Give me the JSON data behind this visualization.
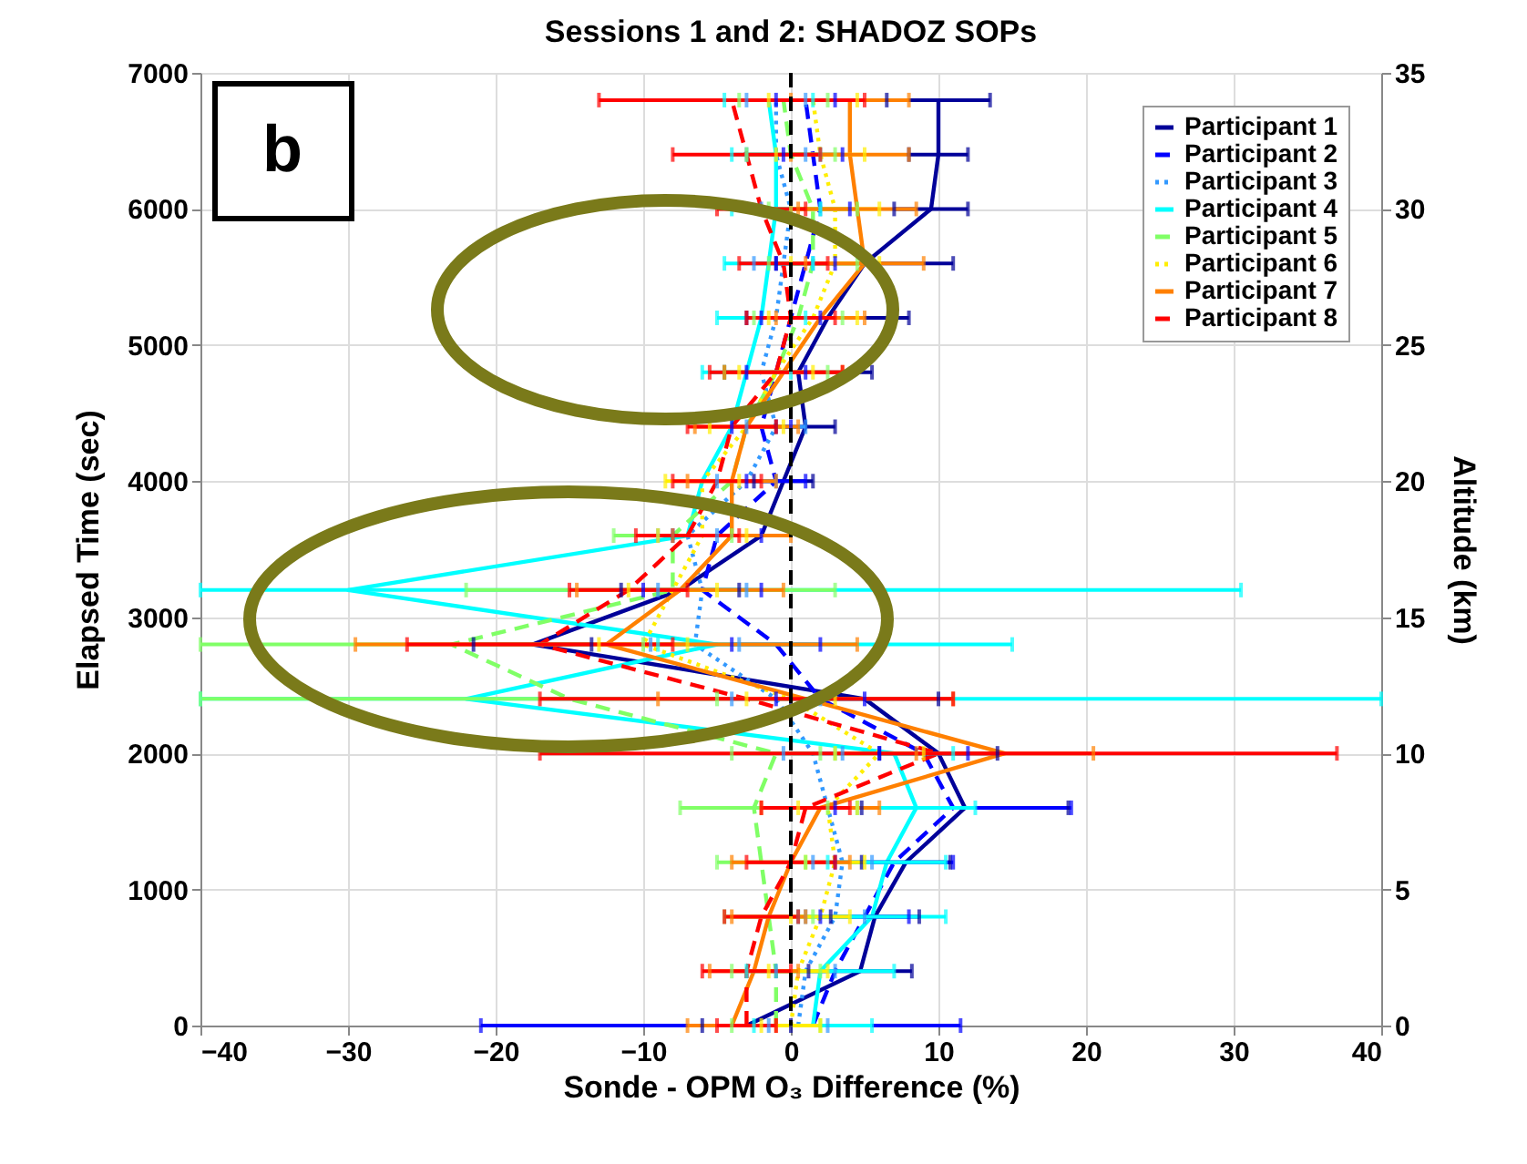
{
  "chart_data": {
    "type": "line",
    "title": "Sessions 1 and 2: SHADOZ SOPs",
    "xlabel": "Sonde - OPM O₃ Difference (%)",
    "ylabel": "Elapsed Time (sec)",
    "y2label": "Altitude (km)",
    "xlim": [
      -40,
      40
    ],
    "xticks": [
      -40,
      -30,
      -20,
      -10,
      0,
      10,
      20,
      30,
      40
    ],
    "ylim": [
      0,
      7000
    ],
    "yticks": [
      0,
      1000,
      2000,
      3000,
      4000,
      5000,
      6000,
      7000
    ],
    "y2lim": [
      0,
      35
    ],
    "y2ticks": [
      0,
      5,
      10,
      15,
      20,
      25,
      30,
      35
    ],
    "grid": true,
    "legend": "top right",
    "annotations": [
      "b"
    ],
    "ref_lines": [
      {
        "axis": "x",
        "value": 0,
        "color": "#000000",
        "line_style": "dashed"
      }
    ],
    "series": [
      {
        "name": "Participant 1",
        "color": "#000099",
        "line_style": "solid",
        "x": [
          -3,
          4.7,
          5.7,
          7.8,
          11.8,
          10,
          5,
          -17.5,
          -7.5,
          -2,
          -0.5,
          1,
          0.5,
          2.5,
          5,
          9.5,
          10,
          10
        ],
        "values": [
          0,
          400,
          800,
          1200,
          1600,
          2000,
          2400,
          2800,
          3200,
          3600,
          4000,
          4400,
          4800,
          5200,
          5600,
          6000,
          6400,
          6800
        ],
        "xerrors": [
          3,
          3.5,
          3,
          3,
          7,
          4,
          5,
          4,
          4,
          null,
          2,
          2,
          5,
          5.5,
          6,
          2.5,
          2,
          3.5
        ]
      },
      {
        "name": "Participant 2",
        "color": "#0000ff",
        "line_style": "dashed",
        "x": [
          1.5,
          3,
          5,
          7,
          11,
          9,
          2,
          -1,
          -6,
          -5,
          -1,
          -2,
          -1,
          0,
          1,
          2,
          1.5,
          1
        ],
        "values": [
          0,
          400,
          800,
          1200,
          1600,
          2000,
          2400,
          2800,
          3200,
          3600,
          4000,
          4400,
          4800,
          5200,
          5600,
          6000,
          6400,
          6800
        ],
        "xerrors": [
          [
            -21,
            11.5
          ],
          null,
          3,
          4,
          8,
          3,
          3,
          3,
          4,
          3,
          2,
          2,
          2,
          2,
          2,
          2,
          2,
          2
        ]
      },
      {
        "name": "Participant 3",
        "color": "#3399ff",
        "line_style": "dotted",
        "x": [
          0.5,
          1,
          3,
          3.5,
          2.5,
          1.5,
          -1,
          -6.5,
          -6,
          -7,
          -3,
          -1,
          -2,
          -1,
          -0.5,
          0,
          -1,
          -1
        ],
        "values": [
          0,
          400,
          800,
          1200,
          1600,
          2000,
          2400,
          2800,
          3200,
          3600,
          4000,
          4400,
          4800,
          5200,
          5600,
          6000,
          6400,
          6800
        ],
        "xerrors": [
          2,
          2,
          2,
          2,
          null,
          2,
          3,
          3,
          3,
          2,
          2,
          2,
          null,
          null,
          2,
          2,
          2,
          2
        ]
      },
      {
        "name": "Participant 4",
        "color": "#00ffff",
        "line_style": "solid",
        "x": [
          1.5,
          2,
          5.5,
          6.5,
          8.5,
          7,
          -22,
          -5,
          -30,
          -7,
          -6,
          -4,
          -3,
          -2,
          -1.5,
          -1,
          -1,
          -1.5
        ],
        "values": [
          0,
          400,
          800,
          1200,
          1600,
          2000,
          2400,
          2800,
          3200,
          3600,
          4000,
          4400,
          4800,
          5200,
          5600,
          6000,
          6400,
          6800
        ],
        "xerrors": [
          4,
          5,
          5,
          4,
          4,
          4,
          [
            -40,
            40
          ],
          [
            -9,
            15
          ],
          [
            -40,
            30.5
          ],
          null,
          null,
          null,
          3,
          3,
          3,
          3,
          3,
          3
        ]
      },
      {
        "name": "Participant 5",
        "color": "#80ff66",
        "line_style": "dashed",
        "x": [
          -1,
          -1,
          -1.5,
          -2,
          -2.5,
          -1,
          -15,
          -23,
          -8,
          -8,
          -4,
          -3,
          -1,
          0.5,
          1.5,
          1.5,
          0,
          -0.5
        ],
        "values": [
          0,
          400,
          800,
          1200,
          1600,
          2000,
          2400,
          2800,
          3200,
          3600,
          4000,
          4400,
          4800,
          5200,
          5600,
          6000,
          6400,
          6800
        ],
        "xerrors": [
          3,
          3,
          3,
          3,
          5,
          3,
          [
            -40,
            -5
          ],
          [
            -40,
            -10
          ],
          [
            -22,
            3
          ],
          4,
          null,
          null,
          3.5,
          3,
          3,
          3,
          3,
          3
        ]
      },
      {
        "name": "Participant 6",
        "color": "#ffee00",
        "line_style": "dotted",
        "x": [
          0,
          0.5,
          2,
          3,
          2.5,
          6,
          0,
          -10,
          -8,
          -6,
          -6,
          -3,
          -1,
          1.5,
          3,
          3,
          2,
          1.5
        ],
        "values": [
          0,
          400,
          800,
          1200,
          1600,
          2000,
          2400,
          2800,
          3200,
          3600,
          4000,
          4400,
          4800,
          5200,
          5600,
          6000,
          6400,
          6800
        ],
        "xerrors": [
          2,
          2,
          2,
          2,
          2,
          3,
          3,
          3,
          3,
          3,
          2.5,
          2.5,
          2.5,
          3,
          3,
          3,
          3,
          3
        ]
      },
      {
        "name": "Participant 7",
        "color": "#ff8000",
        "line_style": "solid",
        "x": [
          -4,
          -2.5,
          -1.5,
          0,
          2,
          14.5,
          1,
          -12.5,
          -7.5,
          -4,
          -4,
          -3,
          -0.5,
          2,
          5,
          4.5,
          4,
          4
        ],
        "values": [
          0,
          400,
          800,
          1200,
          1600,
          2000,
          2400,
          2800,
          3200,
          3600,
          4000,
          4400,
          4800,
          5200,
          5600,
          6000,
          6400,
          6800
        ],
        "xerrors": [
          3,
          3,
          2.5,
          4,
          4,
          6,
          10,
          17,
          7,
          4,
          3,
          3.5,
          4,
          3,
          4,
          4,
          4,
          4
        ]
      },
      {
        "name": "Participant 8",
        "color": "#ff0000",
        "line_style": "dashed",
        "x": [
          -3,
          -3,
          -2,
          0,
          1,
          10,
          -3,
          -17,
          -11,
          -7,
          -5,
          -4,
          -1,
          0,
          -0.5,
          -2,
          -3,
          -4
        ],
        "values": [
          0,
          400,
          800,
          1200,
          1600,
          2000,
          2400,
          2800,
          3200,
          3600,
          4000,
          4400,
          4800,
          5200,
          5600,
          6000,
          6400,
          6800
        ],
        "xerrors": [
          2,
          3,
          2.5,
          3,
          3,
          27,
          14,
          9,
          4,
          3.5,
          3,
          3,
          4.5,
          3,
          3,
          3,
          5,
          9
        ]
      }
    ]
  }
}
